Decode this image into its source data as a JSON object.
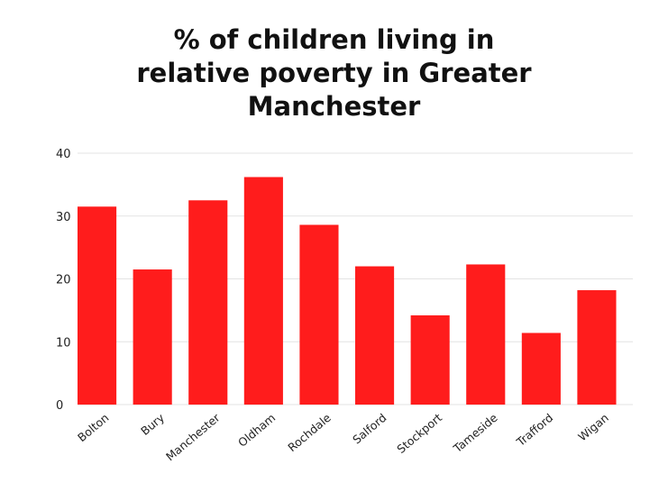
{
  "chart_data": {
    "type": "bar",
    "title_lines": [
      "% of children living in",
      "relative poverty in Greater",
      "Manchester"
    ],
    "categories": [
      "Bolton",
      "Bury",
      "Manchester",
      "Oldham",
      "Rochdale",
      "Salford",
      "Stockport",
      "Tameside",
      "Trafford",
      "Wigan"
    ],
    "values": [
      31.5,
      21.5,
      32.5,
      36.2,
      28.6,
      22.0,
      14.2,
      22.3,
      11.4,
      18.2
    ],
    "yticks": [
      0,
      10,
      20,
      30,
      40
    ],
    "ylim": [
      0,
      40
    ],
    "xlabel": "",
    "ylabel": "",
    "grid": true,
    "bar_color": "#ff1c1c"
  }
}
